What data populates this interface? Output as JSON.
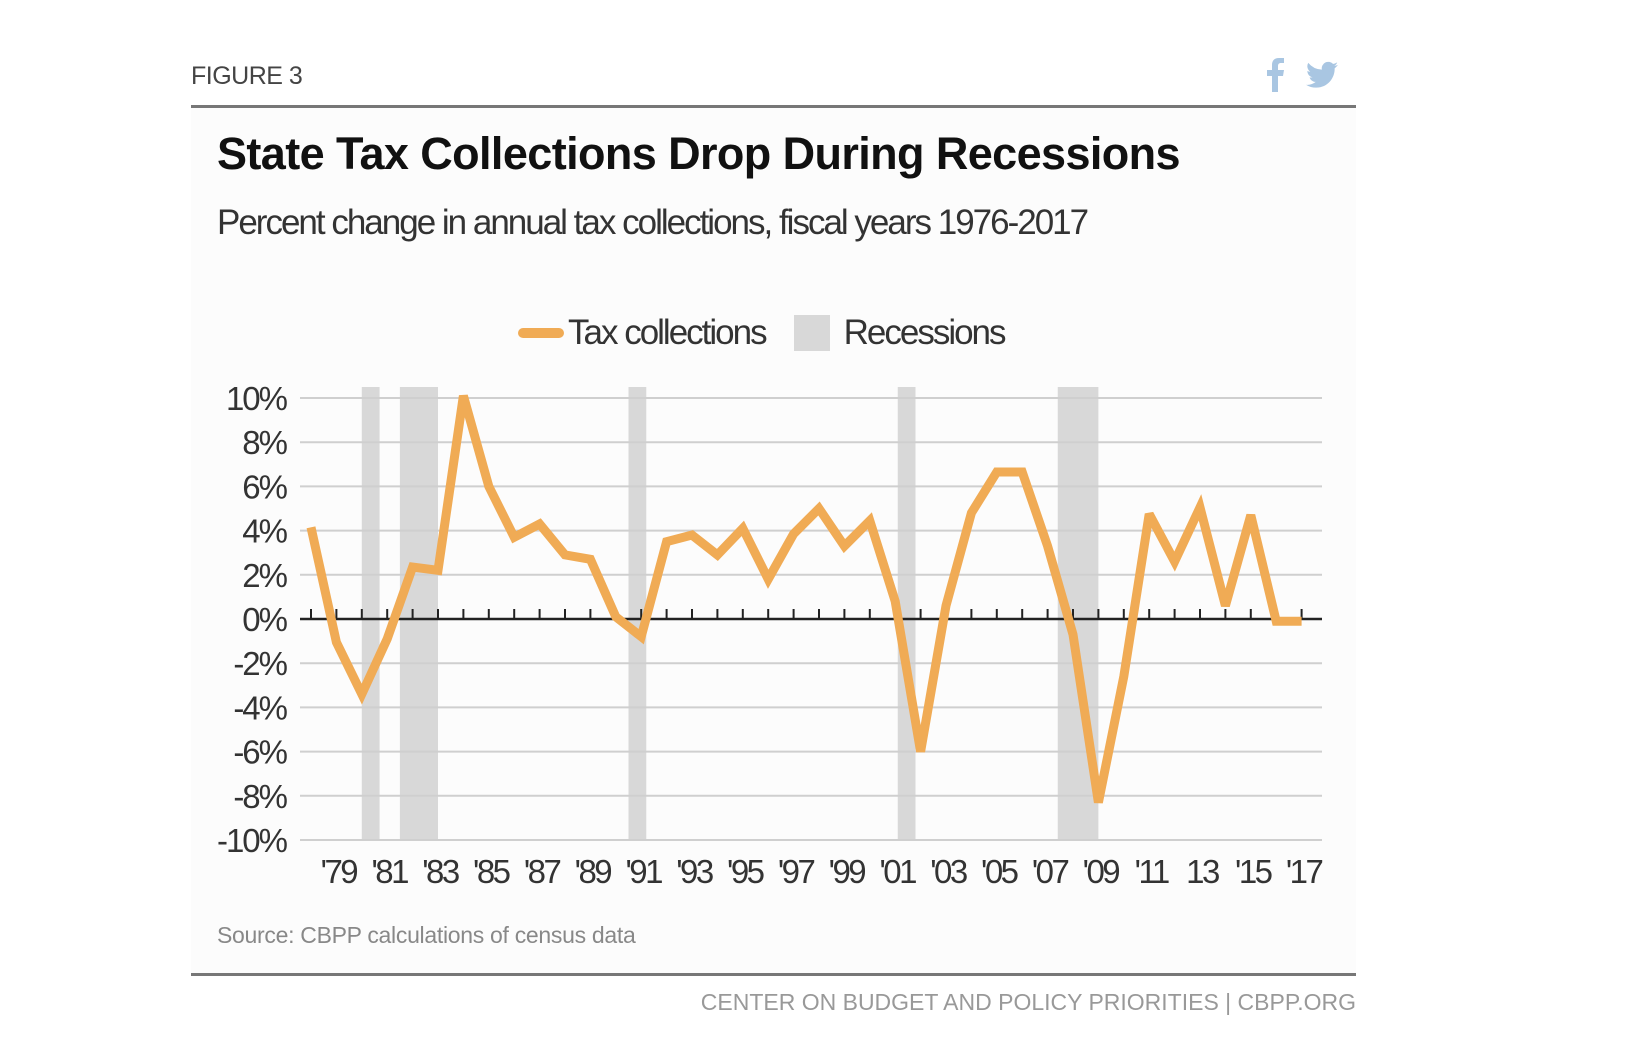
{
  "header": {
    "figure_label": "FIGURE 3",
    "share_icons": [
      "facebook-icon",
      "twitter-icon"
    ],
    "icon_color": "#a9c6e2"
  },
  "footer": {
    "source": "Source: CBPP calculations of census data",
    "credit": "CENTER ON BUDGET AND POLICY PRIORITIES | CBPP.ORG"
  },
  "chart_data": {
    "type": "line",
    "title": "State Tax Collections Drop During Recessions",
    "subtitle": "Percent change in annual tax collections, fiscal years 1976-2017",
    "legend": {
      "placement": "top-center",
      "line_label": "Tax collections",
      "band_label": "Recessions"
    },
    "colors": {
      "line": "#f0ab55",
      "recession": "#d8d8d8",
      "grid": "#cfcfcf",
      "zero_axis": "#222222"
    },
    "grid": true,
    "ylim": [
      -10,
      10
    ],
    "yticks": [
      10,
      8,
      6,
      4,
      2,
      0,
      -2,
      -4,
      -6,
      -8,
      -10
    ],
    "ytick_labels": [
      "10%",
      "8%",
      "6%",
      "4%",
      "2%",
      "0%",
      "-2%",
      "-4%",
      "-6%",
      "-8%",
      "-10%"
    ],
    "xlim": [
      1978,
      2017
    ],
    "xticks": [
      1979,
      1981,
      1983,
      1985,
      1987,
      1989,
      1991,
      1993,
      1995,
      1997,
      1999,
      2001,
      2003,
      2005,
      2007,
      2009,
      2011,
      2013,
      2015,
      2017
    ],
    "xtick_labels": [
      "'79",
      "'81",
      "'83",
      "'85",
      "'87",
      "'89",
      "'91",
      "'93",
      "'95",
      "'97",
      "'99",
      "'01",
      "'03",
      "'05",
      "'07",
      "'09",
      "'11",
      "13",
      "'15",
      "'17"
    ],
    "series": [
      {
        "name": "Tax collections",
        "x": [
          1978,
          1979,
          1980,
          1981,
          1982,
          1983,
          1984,
          1985,
          1986,
          1987,
          1988,
          1989,
          1990,
          1991,
          1992,
          1993,
          1994,
          1995,
          1996,
          1997,
          1998,
          1999,
          2000,
          2001,
          2002,
          2003,
          2004,
          2005,
          2006,
          2007,
          2008,
          2009,
          2010,
          2011,
          2012,
          2013,
          2014,
          2015,
          2016,
          2017
        ],
        "values": [
          4.15,
          -1.05,
          -3.4,
          -0.9,
          2.35,
          2.2,
          10.1,
          6.0,
          3.7,
          4.3,
          2.9,
          2.7,
          0.1,
          -0.8,
          3.5,
          3.8,
          2.9,
          4.1,
          1.8,
          3.85,
          5.0,
          3.3,
          4.45,
          0.8,
          -6.0,
          0.6,
          4.8,
          6.65,
          6.65,
          3.3,
          -0.7,
          -8.3,
          -2.6,
          4.75,
          2.6,
          5.05,
          0.6,
          4.7,
          -0.1,
          -0.1
        ]
      }
    ],
    "recessions": [
      [
        1980.0,
        1980.7
      ],
      [
        1981.5,
        1983.0
      ],
      [
        1990.5,
        1991.2
      ],
      [
        2001.1,
        2001.8
      ],
      [
        2007.4,
        2009.0
      ]
    ]
  }
}
